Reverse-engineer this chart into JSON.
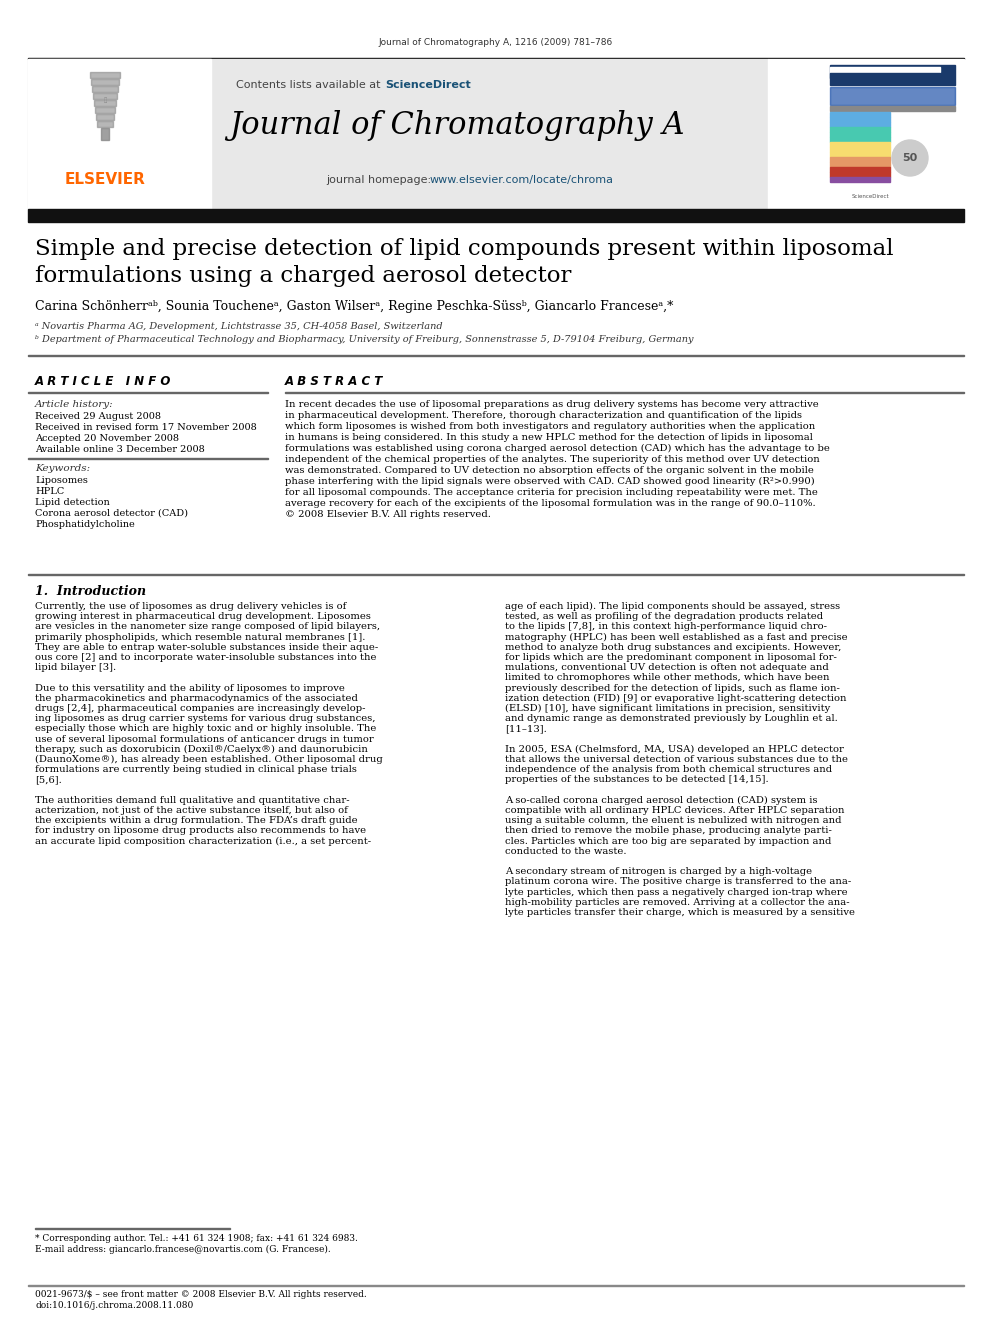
{
  "journal_header": "Journal of Chromatography A, 1216 (2009) 781–786",
  "contents_note": "Contents lists available at ",
  "science_direct": "ScienceDirect",
  "journal_title": "Journal of Chromatography A",
  "journal_homepage_prefix": "journal homepage: ",
  "journal_homepage_url": "www.elsevier.com/locate/chroma",
  "elsevier_color": "#FF6600",
  "elsevier_text": "ELSEVIER",
  "sciencedirect_color": "#1a5276",
  "url_color": "#1a5276",
  "paper_title_line1": "Simple and precise detection of lipid compounds present within liposomal",
  "paper_title_line2": "formulations using a charged aerosol detector",
  "authors": "Carina Schönherrᵃᵇ, Sounia Toucheneᵃ, Gaston Wilserᵃ, Regine Peschka-Süssᵇ, Giancarlo Franceseᵃ,*",
  "affiliation_a": "ᵃ Novartis Pharma AG, Development, Lichtstrasse 35, CH-4058 Basel, Switzerland",
  "affiliation_b": "ᵇ Department of Pharmaceutical Technology and Biopharmacy, University of Freiburg, Sonnenstrasse 5, D-79104 Freiburg, Germany",
  "article_info_title": "A R T I C L E   I N F O",
  "abstract_title": "A B S T R A C T",
  "article_history_title": "Article history:",
  "received_1": "Received 29 August 2008",
  "received_revised": "Received in revised form 17 November 2008",
  "accepted": "Accepted 20 November 2008",
  "available": "Available online 3 December 2008",
  "keywords_title": "Keywords:",
  "keywords": [
    "Liposomes",
    "HPLC",
    "Lipid detection",
    "Corona aerosol detector (CAD)",
    "Phosphatidylcholine"
  ],
  "abstract_lines": [
    "In recent decades the use of liposomal preparations as drug delivery systems has become very attractive",
    "in pharmaceutical development. Therefore, thorough characterization and quantification of the lipids",
    "which form liposomes is wished from both investigators and regulatory authorities when the application",
    "in humans is being considered. In this study a new HPLC method for the detection of lipids in liposomal",
    "formulations was established using corona charged aerosol detection (CAD) which has the advantage to be",
    "independent of the chemical properties of the analytes. The superiority of this method over UV detection",
    "was demonstrated. Compared to UV detection no absorption effects of the organic solvent in the mobile",
    "phase interfering with the lipid signals were observed with CAD. CAD showed good linearity (R²>0.990)",
    "for all liposomal compounds. The acceptance criteria for precision including repeatability were met. The",
    "average recovery for each of the excipients of the liposomal formulation was in the range of 90.0–110%.",
    "© 2008 Elsevier B.V. All rights reserved."
  ],
  "section1_title": "1.  Introduction",
  "intro_col1_lines": [
    "Currently, the use of liposomes as drug delivery vehicles is of",
    "growing interest in pharmaceutical drug development. Liposomes",
    "are vesicles in the nanometer size range composed of lipid bilayers,",
    "primarily phospholipids, which resemble natural membranes [1].",
    "They are able to entrap water-soluble substances inside their aque-",
    "ous core [2] and to incorporate water-insoluble substances into the",
    "lipid bilayer [3].",
    "",
    "Due to this versatility and the ability of liposomes to improve",
    "the pharmacokinetics and pharmacodynamics of the associated",
    "drugs [2,4], pharmaceutical companies are increasingly develop-",
    "ing liposomes as drug carrier systems for various drug substances,",
    "especially those which are highly toxic and or highly insoluble. The",
    "use of several liposomal formulations of anticancer drugs in tumor",
    "therapy, such as doxorubicin (Doxil®/Caelyx®) and daunorubicin",
    "(DaunoXome®), has already been established. Other liposomal drug",
    "formulations are currently being studied in clinical phase trials",
    "[5,6].",
    "",
    "The authorities demand full qualitative and quantitative char-",
    "acterization, not just of the active substance itself, but also of",
    "the excipients within a drug formulation. The FDA’s draft guide",
    "for industry on liposome drug products also recommends to have",
    "an accurate lipid composition characterization (i.e., a set percent-"
  ],
  "intro_col2_lines": [
    "age of each lipid). The lipid components should be assayed, stress",
    "tested, as well as profiling of the degradation products related",
    "to the lipids [7,8], in this context high-performance liquid chro-",
    "matography (HPLC) has been well established as a fast and precise",
    "method to analyze both drug substances and excipients. However,",
    "for lipids which are the predominant component in liposomal for-",
    "mulations, conventional UV detection is often not adequate and",
    "limited to chromophores while other methods, which have been",
    "previously described for the detection of lipids, such as flame ion-",
    "ization detection (FID) [9] or evaporative light-scattering detection",
    "(ELSD) [10], have significant limitations in precision, sensitivity",
    "and dynamic range as demonstrated previously by Loughlin et al.",
    "[11–13].",
    "",
    "In 2005, ESA (Chelmsford, MA, USA) developed an HPLC detector",
    "that allows the universal detection of various substances due to the",
    "independence of the analysis from both chemical structures and",
    "properties of the substances to be detected [14,15].",
    "",
    "A so-called corona charged aerosol detection (CAD) system is",
    "compatible with all ordinary HPLC devices. After HPLC separation",
    "using a suitable column, the eluent is nebulized with nitrogen and",
    "then dried to remove the mobile phase, producing analyte parti-",
    "cles. Particles which are too big are separated by impaction and",
    "conducted to the waste.",
    "",
    "A secondary stream of nitrogen is charged by a high-voltage",
    "platinum corona wire. The positive charge is transferred to the ana-",
    "lyte particles, which then pass a negatively charged ion-trap where",
    "high-mobility particles are removed. Arriving at a collector the ana-",
    "lyte particles transfer their charge, which is measured by a sensitive"
  ],
  "footnote_star": "* Corresponding author. Tel.: +41 61 324 1908; fax: +41 61 324 6983.",
  "footnote_email": "E-mail address: giancarlo.francese@novartis.com (G. Francese).",
  "footer_issn": "0021-9673/$ – see front matter © 2008 Elsevier B.V. All rights reserved.",
  "footer_doi": "doi:10.1016/j.chroma.2008.11.080",
  "bg_color": "#FFFFFF",
  "gray_bg": "#E8E8E8",
  "black_bar_color": "#111111",
  "text_color": "#000000"
}
